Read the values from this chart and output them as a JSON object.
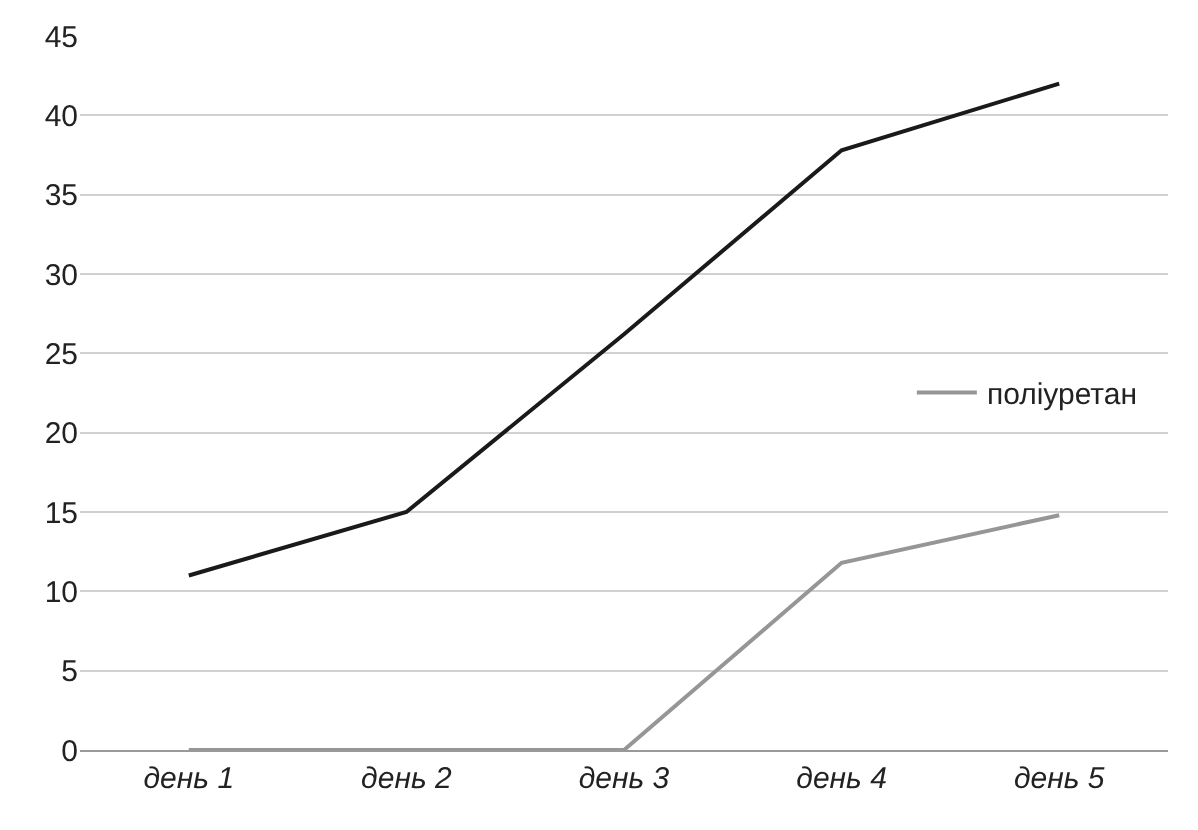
{
  "chart_data": {
    "type": "line",
    "categories": [
      "день 1",
      "день 2",
      "день 3",
      "день 4",
      "день 5"
    ],
    "series": [
      {
        "name": "поліуретан",
        "color": "#969696",
        "values": [
          0,
          0,
          0,
          11.8,
          14.8
        ]
      },
      {
        "color": "#1a1a1a",
        "values": [
          11,
          15,
          26.2,
          37.8,
          42
        ]
      }
    ],
    "ylim": [
      0,
      45
    ],
    "yticks": [
      0,
      5,
      10,
      15,
      20,
      25,
      30,
      35,
      40,
      45
    ],
    "grid": "y",
    "legend": "right",
    "marker": "none",
    "line_style": "solid"
  }
}
